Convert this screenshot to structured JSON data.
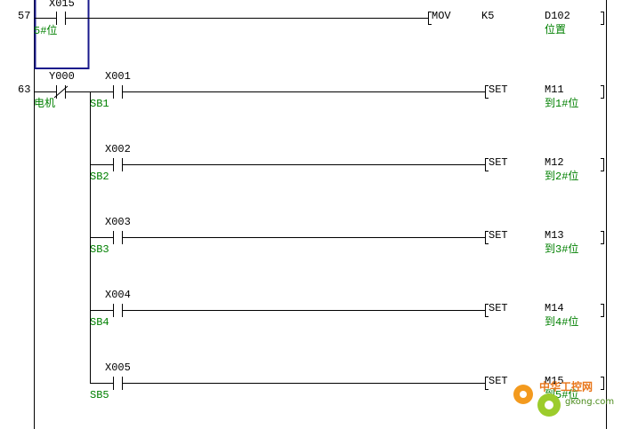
{
  "rungs": [
    {
      "step": "57",
      "contact": {
        "device": "X015",
        "comment": "5#位"
      },
      "instruction": "MOV",
      "source": "K5",
      "dest": {
        "device": "D102",
        "comment": "位置"
      }
    },
    {
      "step": "63",
      "contact": {
        "device": "Y000",
        "comment": "电机"
      },
      "branches": [
        {
          "contact": {
            "device": "X001",
            "comment": "SB1"
          },
          "instruction": "SET",
          "dest": {
            "device": "M11",
            "comment": "到1#位"
          }
        },
        {
          "contact": {
            "device": "X002",
            "comment": "SB2"
          },
          "instruction": "SET",
          "dest": {
            "device": "M12",
            "comment": "到2#位"
          }
        },
        {
          "contact": {
            "device": "X003",
            "comment": "SB3"
          },
          "instruction": "SET",
          "dest": {
            "device": "M13",
            "comment": "到3#位"
          }
        },
        {
          "contact": {
            "device": "X004",
            "comment": "SB4"
          },
          "instruction": "SET",
          "dest": {
            "device": "M14",
            "comment": "到4#位"
          }
        },
        {
          "contact": {
            "device": "X005",
            "comment": "SB5"
          },
          "instruction": "SET",
          "dest": {
            "device": "M15",
            "comment": "到5#位"
          }
        }
      ]
    }
  ],
  "watermark": {
    "name": "中华工控网",
    "site": "gkong.com"
  }
}
